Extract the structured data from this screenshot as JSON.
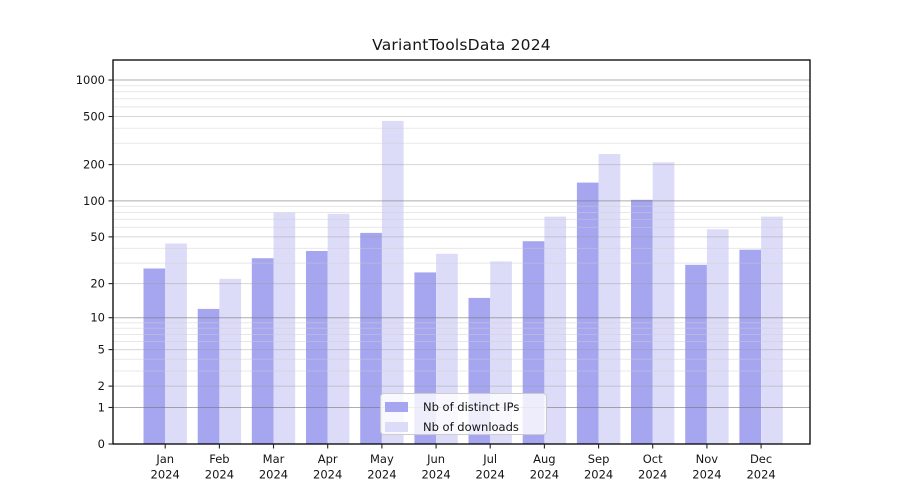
{
  "chart_data": {
    "type": "bar",
    "title": "VariantToolsData 2024",
    "categories": [
      "Jan 2024",
      "Feb 2024",
      "Mar 2024",
      "Apr 2024",
      "May 2024",
      "Jun 2024",
      "Jul 2024",
      "Aug 2024",
      "Sep 2024",
      "Oct 2024",
      "Nov 2024",
      "Dec 2024"
    ],
    "series": [
      {
        "name": "Nb of distinct IPs",
        "color": "#a6a6f0",
        "values": [
          27,
          12,
          33,
          38,
          54,
          25,
          15,
          46,
          142,
          102,
          29,
          39
        ]
      },
      {
        "name": "Nb of downloads",
        "color": "#dcdcf8",
        "values": [
          44,
          22,
          80,
          78,
          460,
          36,
          31,
          74,
          245,
          209,
          58,
          74
        ]
      }
    ],
    "yscale": "log(1+x)",
    "y_ticks": [
      0,
      1,
      2,
      5,
      10,
      20,
      50,
      100,
      200,
      500,
      1000
    ],
    "ylim": [
      0,
      1450
    ],
    "xlabel": "",
    "ylabel": "",
    "grid": true,
    "legend_position": "lower center (inside plot area)"
  },
  "legend": {
    "items": [
      {
        "label": "Nb of distinct IPs",
        "color": "#a6a6f0"
      },
      {
        "label": "Nb of downloads",
        "color": "#dcdcf8"
      }
    ]
  }
}
